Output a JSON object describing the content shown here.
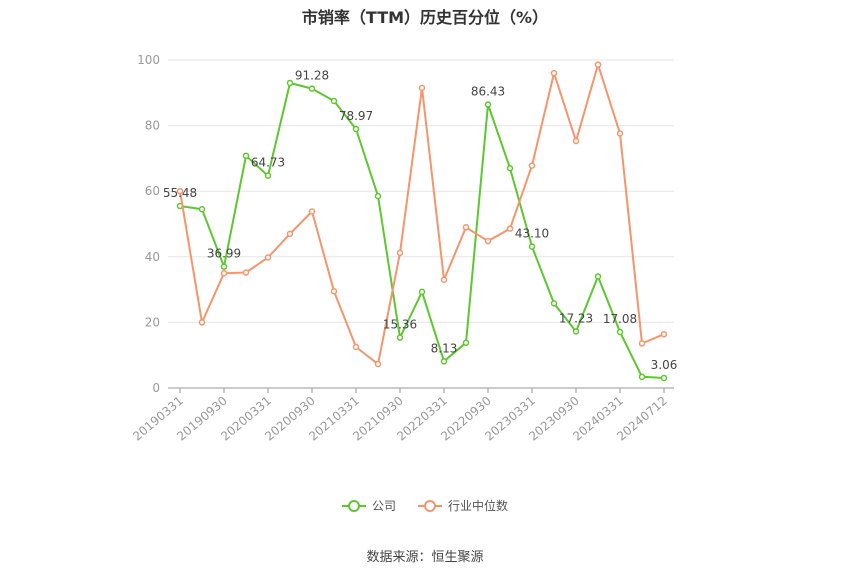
{
  "chart_data": {
    "type": "line",
    "title": "市销率（TTM）历史百分位（%）",
    "xlabel": "",
    "ylabel": "",
    "ylim": [
      0,
      100
    ],
    "yticks": [
      0,
      20,
      40,
      60,
      80,
      100
    ],
    "x": [
      "20190331",
      "",
      "20190930",
      "",
      "20200331",
      "",
      "20200930",
      "",
      "20210331",
      "",
      "20210930",
      "",
      "20220331",
      "",
      "20220930",
      "",
      "20230331",
      "",
      "20230930",
      "",
      "20240331",
      "",
      "20240712"
    ],
    "x_tick_labels": [
      "20190331",
      "20190930",
      "20200331",
      "20200930",
      "20210331",
      "20210930",
      "20220331",
      "20220930",
      "20230331",
      "20230930",
      "20240331",
      "20240712"
    ],
    "grid": true,
    "legend_position": "bottom",
    "series": [
      {
        "name": "公司",
        "color": "#5cc72f",
        "values": [
          55.48,
          54.5,
          36.99,
          70.8,
          64.73,
          93.0,
          91.28,
          87.5,
          78.97,
          58.5,
          15.36,
          29.3,
          8.13,
          13.8,
          86.43,
          67.0,
          43.1,
          25.8,
          17.23,
          34.0,
          17.08,
          3.4,
          3.06
        ],
        "labels": [
          "55.48",
          null,
          "36.99",
          null,
          "64.73",
          null,
          "91.28",
          null,
          "78.97",
          null,
          "15.36",
          null,
          "8.13",
          null,
          "86.43",
          null,
          "43.10",
          null,
          "17.23",
          null,
          "17.08",
          null,
          "3.06"
        ]
      },
      {
        "name": "行业中位数",
        "color": "#f4956b",
        "values": [
          60.0,
          20.0,
          35.0,
          35.2,
          39.8,
          47.0,
          53.8,
          29.5,
          12.5,
          7.3,
          41.2,
          91.5,
          33.0,
          49.0,
          44.8,
          48.6,
          67.8,
          96.0,
          75.3,
          98.6,
          77.6,
          13.6,
          16.4
        ],
        "labels": []
      }
    ]
  },
  "source_text": "数据来源：恒生聚源"
}
